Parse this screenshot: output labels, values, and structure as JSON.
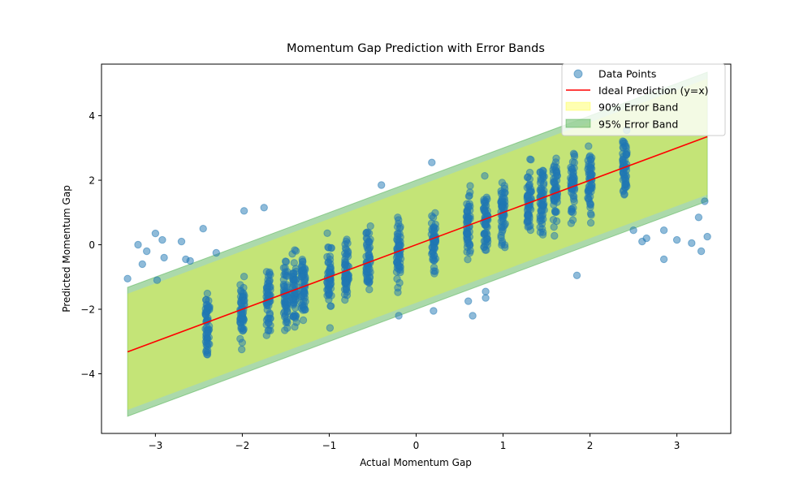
{
  "chart_data": {
    "type": "scatter",
    "title": "Momentum Gap Prediction with Error Bands",
    "xlabel": "Actual Momentum Gap",
    "ylabel": "Predicted Momentum Gap",
    "xlim": [
      -3.62,
      3.62
    ],
    "ylim": [
      -5.85,
      5.6
    ],
    "xticks": [
      -3,
      -2,
      -1,
      0,
      1,
      2,
      3
    ],
    "yticks": [
      -4,
      -2,
      0,
      2,
      4
    ],
    "tick_labels": {
      "x": [
        "−3",
        "−2",
        "−1",
        "0",
        "1",
        "2",
        "3"
      ],
      "y": [
        "−4",
        "−2",
        "0",
        "2",
        "4"
      ]
    },
    "legend_position": "top-right",
    "grid": false,
    "series": [
      {
        "name": "Data Points",
        "kind": "scatter",
        "color": "#1f77b4",
        "alpha": 0.5,
        "summary": "Points stacked in vertical columns at discrete actual-gap values; noisy spread around the y=x line, inliers covered by the bands.",
        "column_x": [
          -2.4,
          -2.0,
          -1.7,
          -1.5,
          -1.4,
          -1.3,
          -1.0,
          -0.8,
          -0.55,
          -0.2,
          0.2,
          0.6,
          0.8,
          1.0,
          1.3,
          1.45,
          1.6,
          1.8,
          2.0,
          2.4
        ],
        "outliers": [
          [
            -3.32,
            -1.05
          ],
          [
            -3.2,
            0.0
          ],
          [
            -3.15,
            -0.6
          ],
          [
            -3.1,
            -0.2
          ],
          [
            -3.0,
            0.35
          ],
          [
            -2.98,
            -1.1
          ],
          [
            -2.92,
            0.15
          ],
          [
            -2.9,
            -0.4
          ],
          [
            -2.7,
            0.1
          ],
          [
            -2.65,
            -0.45
          ],
          [
            -2.6,
            -0.5
          ],
          [
            -2.45,
            0.5
          ],
          [
            -2.3,
            -0.25
          ],
          [
            -1.98,
            1.05
          ],
          [
            -1.75,
            1.15
          ],
          [
            -0.4,
            1.85
          ],
          [
            -0.2,
            -2.2
          ],
          [
            0.18,
            2.55
          ],
          [
            0.2,
            -2.05
          ],
          [
            0.6,
            -1.75
          ],
          [
            0.65,
            -2.2
          ],
          [
            0.8,
            -1.45
          ],
          [
            0.8,
            -1.65
          ],
          [
            1.85,
            -0.95
          ],
          [
            2.5,
            0.45
          ],
          [
            2.6,
            0.1
          ],
          [
            2.65,
            0.2
          ],
          [
            2.85,
            0.45
          ],
          [
            2.85,
            -0.45
          ],
          [
            3.0,
            0.15
          ],
          [
            3.17,
            0.05
          ],
          [
            3.25,
            0.85
          ],
          [
            3.28,
            -0.2
          ],
          [
            3.32,
            1.35
          ],
          [
            3.35,
            0.25
          ]
        ]
      },
      {
        "name": "Ideal Prediction (y=x)",
        "kind": "line",
        "color": "#ff0000",
        "x": [
          -3.32,
          3.35
        ],
        "y": [
          -3.32,
          3.35
        ]
      },
      {
        "name": "90% Error Band",
        "kind": "band",
        "color": "#ffff00",
        "alpha": 0.3,
        "x": [
          -3.32,
          3.35
        ],
        "lower": [
          -5.12,
          1.55
        ],
        "upper": [
          -1.52,
          5.15
        ]
      },
      {
        "name": "95% Error Band",
        "kind": "band",
        "color": "#2ca02c",
        "alpha": 0.4,
        "x": [
          -3.32,
          3.35
        ],
        "lower": [
          -5.32,
          1.35
        ],
        "upper": [
          -1.32,
          5.35
        ]
      }
    ]
  }
}
